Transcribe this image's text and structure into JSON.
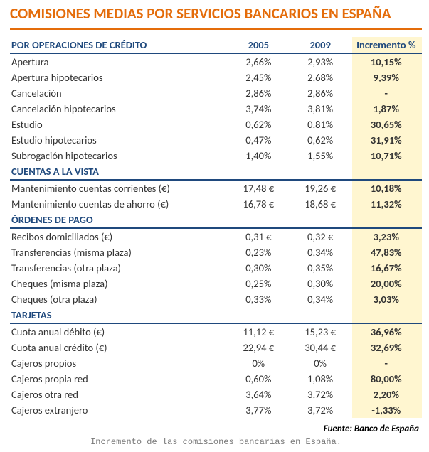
{
  "colors": {
    "title": "#e46c0a",
    "header": "#1f497d",
    "highlight_bg": "#fff6d0",
    "text": "#333333",
    "caption": "#777777"
  },
  "title": "COMISIONES MEDIAS POR SERVICIOS BANCARIOS EN ESPAÑA",
  "columns": {
    "section1": "POR OPERACIONES DE CRÉDITO",
    "y2005": "2005",
    "y2009": "2009",
    "inc": "Incremento %"
  },
  "sections": [
    {
      "header_in_thead": true,
      "rows": [
        {
          "label": "Apertura",
          "y2005": "2,66%",
          "y2009": "2,93%",
          "inc": "10,15%"
        },
        {
          "label": "Apertura hipotecarios",
          "y2005": "2,45%",
          "y2009": "2,68%",
          "inc": "9,39%"
        },
        {
          "label": "Cancelación",
          "y2005": "2,86%",
          "y2009": "2,86%",
          "inc": "-"
        },
        {
          "label": "Cancelación hipotecarios",
          "y2005": "3,74%",
          "y2009": "3,81%",
          "inc": "1,87%"
        },
        {
          "label": "Estudio",
          "y2005": "0,62%",
          "y2009": "0,81%",
          "inc": "30,65%"
        },
        {
          "label": "Estudio hipotecarios",
          "y2005": "0,47%",
          "y2009": "0,62%",
          "inc": "31,91%"
        },
        {
          "label": "Subrogación hipotecarios",
          "y2005": "1,40%",
          "y2009": "1,55%",
          "inc": "10,71%"
        }
      ]
    },
    {
      "title": "CUENTAS A LA VISTA",
      "rows": [
        {
          "label": "Mantenimiento cuentas corrientes (€)",
          "y2005": "17,48 €",
          "y2009": "19,26 €",
          "inc": "10,18%"
        },
        {
          "label": "Mantenimiento cuentas de ahorro (€)",
          "y2005": "16,78 €",
          "y2009": "18,68 €",
          "inc": "11,32%"
        }
      ]
    },
    {
      "title": "ÓRDENES DE PAGO",
      "rows": [
        {
          "label": "Recibos domiciliados (€)",
          "y2005": "0,31 €",
          "y2009": "0,32 €",
          "inc": "3,23%"
        },
        {
          "label": "Transferencias (misma plaza)",
          "y2005": "0,23%",
          "y2009": "0,34%",
          "inc": "47,83%"
        },
        {
          "label": "Transferencias (otra plaza)",
          "y2005": "0,30%",
          "y2009": "0,35%",
          "inc": "16,67%"
        },
        {
          "label": "Cheques (misma plaza)",
          "y2005": "0,25%",
          "y2009": "0,30%",
          "inc": "20,00%"
        },
        {
          "label": "Cheques (otra plaza)",
          "y2005": "0,33%",
          "y2009": "0,34%",
          "inc": "3,03%"
        }
      ]
    },
    {
      "title": "TARJETAS",
      "rows": [
        {
          "label": "Cuota anual débito (€)",
          "y2005": "11,12 €",
          "y2009": "15,23 €",
          "inc": "36,96%"
        },
        {
          "label": "Cuota anual crédito (€)",
          "y2005": "22,94 €",
          "y2009": "30,44 €",
          "inc": "32,69%"
        },
        {
          "label": "Cajeros propios",
          "y2005": "0%",
          "y2009": "0%",
          "inc": "-"
        },
        {
          "label": "Cajeros propia red",
          "y2005": "0,60%",
          "y2009": "1,08%",
          "inc": "80,00%"
        },
        {
          "label": "Cajeros otra red",
          "y2005": "3,64%",
          "y2009": "3,72%",
          "inc": "2,20%"
        },
        {
          "label": "Cajeros extranjero",
          "y2005": "3,77%",
          "y2009": "3,72%",
          "inc": "-1,33%"
        }
      ]
    }
  ],
  "source": "Fuente: Banco de España",
  "caption": "Incremento de las comisiones bancarias en España."
}
